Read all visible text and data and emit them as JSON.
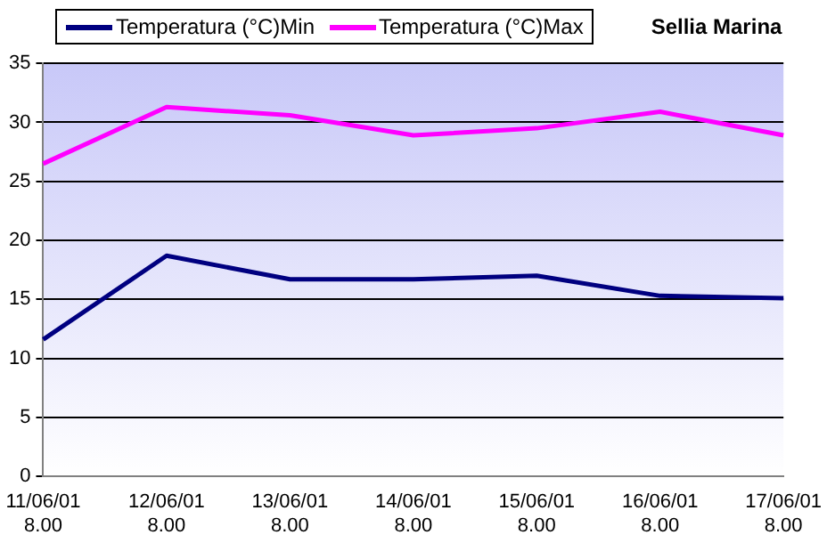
{
  "chart_data": {
    "type": "line",
    "title": "Sellia Marina",
    "categories": [
      "11/06/01 8.00",
      "12/06/01 8.00",
      "13/06/01 8.00",
      "14/06/01 8.00",
      "15/06/01 8.00",
      "16/06/01 8.00",
      "17/06/01 8.00"
    ],
    "series": [
      {
        "name": "Temperatura (°C)Min",
        "color": "#000080",
        "values": [
          11.6,
          18.7,
          16.7,
          16.7,
          17.0,
          15.3,
          15.1
        ]
      },
      {
        "name": "Temperatura (°C)Max",
        "color": "#ff00ff",
        "values": [
          26.5,
          31.3,
          30.6,
          28.9,
          29.5,
          30.9,
          28.9
        ]
      }
    ],
    "ylim": [
      0,
      35
    ],
    "yticks": [
      0,
      5,
      10,
      15,
      20,
      25,
      30,
      35
    ],
    "grid": "y",
    "legend": "top left",
    "marker": "none",
    "line_style": "solid"
  }
}
